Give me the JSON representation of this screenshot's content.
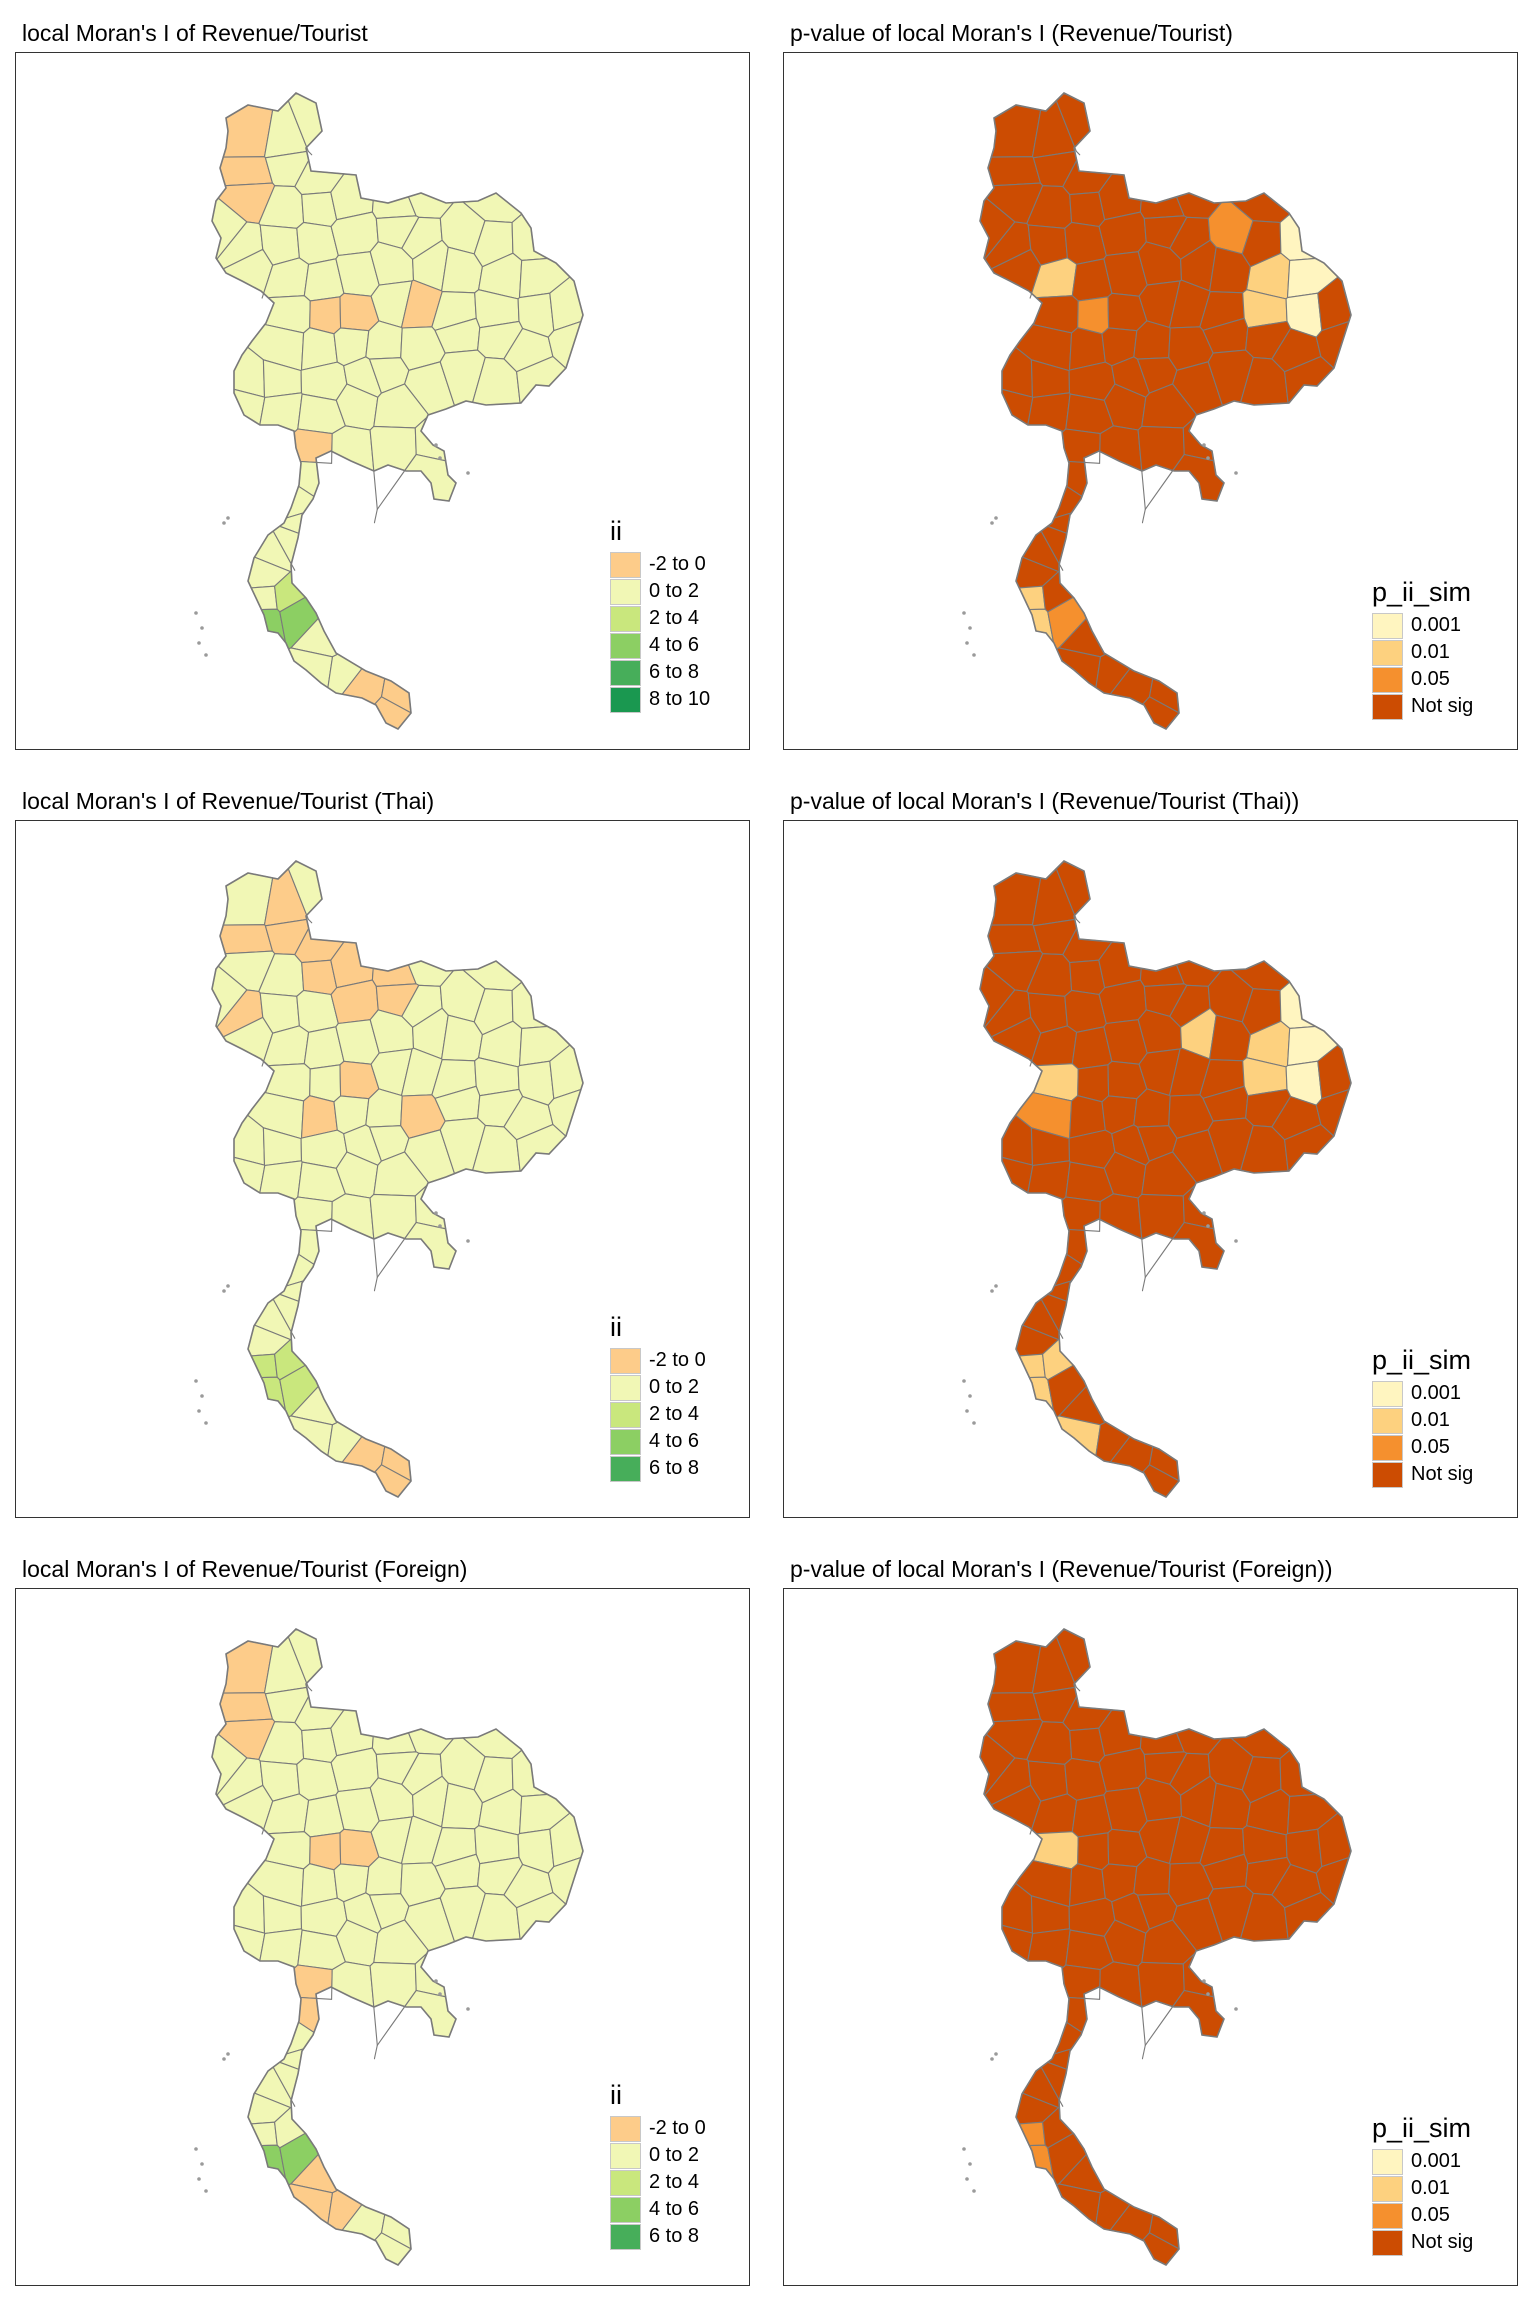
{
  "colors": {
    "border": "#7a7a7a",
    "ii": [
      "#fdcc8a",
      "#f1f7b5",
      "#c9e77d",
      "#8ccf63",
      "#47ae5a",
      "#1a9850"
    ],
    "p": [
      "#fff5c0",
      "#fdd17f",
      "#f5902e",
      "#cc4c02"
    ]
  },
  "panels": [
    {
      "title": "local Moran's I of Revenue/Tourist",
      "legend": {
        "title": "ii",
        "items": [
          "-2 to 0",
          "0 to 2",
          "2 to 4",
          "4 to 6",
          "6 to 8",
          "8 to 10"
        ]
      },
      "kind": "ii",
      "variant": 0
    },
    {
      "title": "p-value of local Moran's I (Revenue/Tourist)",
      "legend": {
        "title": "p_ii_sim",
        "items": [
          "0.001",
          "0.01",
          "0.05",
          "Not sig"
        ]
      },
      "kind": "p",
      "variant": 0
    },
    {
      "title": "local Moran's I of Revenue/Tourist (Thai)",
      "legend": {
        "title": "ii",
        "items": [
          "-2 to 0",
          "0 to 2",
          "2 to 4",
          "4 to 6",
          "6 to 8"
        ]
      },
      "kind": "ii",
      "variant": 1
    },
    {
      "title": "p-value of local Moran's I (Revenue/Tourist (Thai))",
      "legend": {
        "title": "p_ii_sim",
        "items": [
          "0.001",
          "0.01",
          "0.05",
          "Not sig"
        ]
      },
      "kind": "p",
      "variant": 1
    },
    {
      "title": "local Moran's I of Revenue/Tourist (Foreign)",
      "legend": {
        "title": "ii",
        "items": [
          "-2 to 0",
          "0 to 2",
          "2 to 4",
          "4 to 6",
          "6 to 8"
        ]
      },
      "kind": "ii",
      "variant": 2
    },
    {
      "title": "p-value of local Moran's I (Revenue/Tourist (Foreign))",
      "legend": {
        "title": "p_ii_sim",
        "items": [
          "0.001",
          "0.01",
          "0.05",
          "Not sig"
        ]
      },
      "kind": "p",
      "variant": 2
    }
  ]
}
